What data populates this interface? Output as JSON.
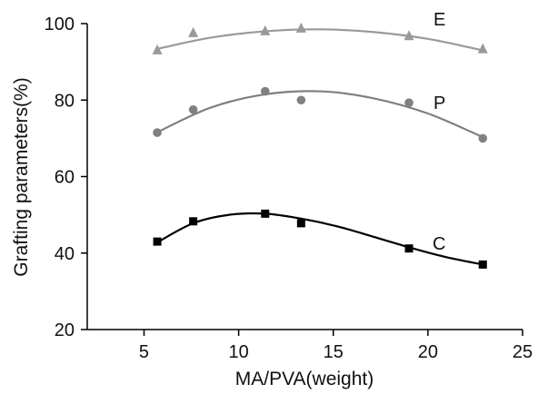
{
  "chart_data": {
    "type": "scatter",
    "title": "",
    "xlabel": "MA/PVA(weight)",
    "ylabel": "Grafting parameters(%)",
    "xlim": [
      2,
      25
    ],
    "ylim": [
      20,
      100
    ],
    "x_ticks": [
      5,
      10,
      15,
      20,
      25
    ],
    "y_ticks": [
      20,
      40,
      60,
      80,
      100
    ],
    "grid": false,
    "series": [
      {
        "name": "E",
        "marker": "triangle",
        "color": "#999999",
        "x": [
          5.7,
          7.6,
          11.4,
          13.3,
          19.0,
          22.9
        ],
        "y": [
          93.0,
          97.5,
          98.0,
          98.7,
          96.7,
          93.3
        ],
        "fit": [
          [
            5.7,
            93.4
          ],
          [
            8.5,
            96.3
          ],
          [
            11.4,
            98.0
          ],
          [
            14.3,
            98.5
          ],
          [
            17.1,
            97.8
          ],
          [
            20.0,
            96.0
          ],
          [
            22.9,
            93.0
          ]
        ]
      },
      {
        "name": "P",
        "marker": "circle",
        "color": "#808080",
        "x": [
          5.7,
          7.6,
          11.4,
          13.3,
          19.0,
          22.9
        ],
        "y": [
          71.5,
          77.5,
          82.3,
          80.0,
          79.3,
          70.0
        ],
        "fit": [
          [
            5.7,
            71.6
          ],
          [
            8.5,
            78.0
          ],
          [
            11.4,
            81.5
          ],
          [
            14.3,
            82.3
          ],
          [
            17.1,
            80.5
          ],
          [
            20.0,
            76.5
          ],
          [
            22.9,
            70.3
          ]
        ]
      },
      {
        "name": "C",
        "marker": "square",
        "color": "#000000",
        "x": [
          5.7,
          7.6,
          11.4,
          13.3,
          19.0,
          22.9
        ],
        "y": [
          43.0,
          48.3,
          50.3,
          47.8,
          41.2,
          37.0
        ],
        "fit": [
          [
            5.7,
            42.8
          ],
          [
            7.6,
            47.8
          ],
          [
            9.5,
            50.0
          ],
          [
            11.4,
            50.3
          ],
          [
            13.3,
            49.0
          ],
          [
            15.2,
            47.0
          ],
          [
            17.1,
            44.3
          ],
          [
            19.0,
            41.5
          ],
          [
            20.9,
            39.0
          ],
          [
            22.9,
            37.0
          ]
        ]
      }
    ]
  }
}
